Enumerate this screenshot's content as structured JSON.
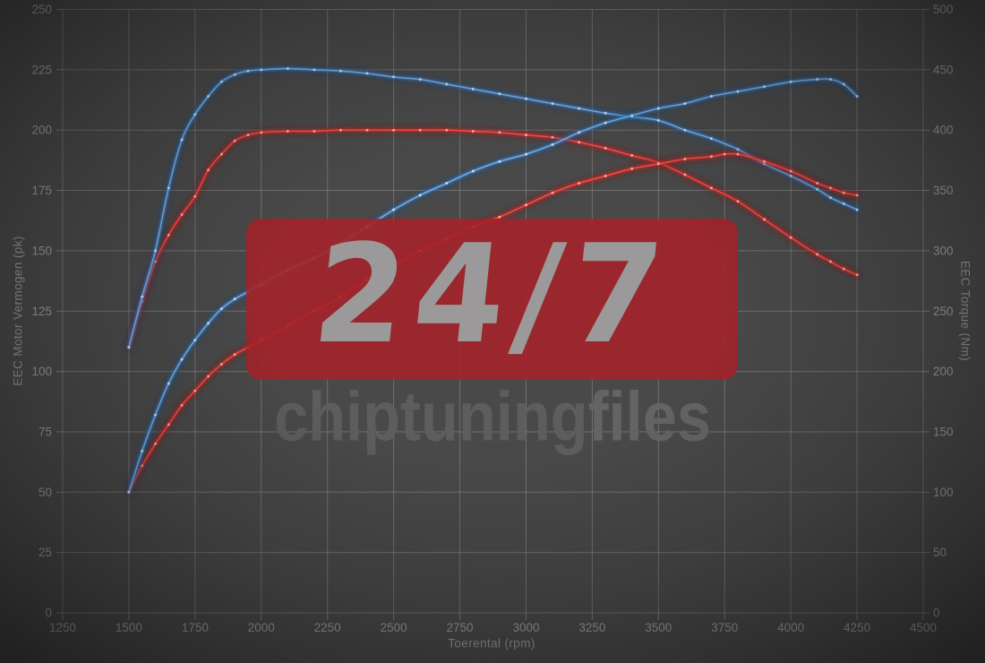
{
  "watermark": {
    "big": "24/7",
    "brand_left": "chiptuning",
    "brand_right": "files"
  },
  "colors": {
    "background": "#494949",
    "grid": "#a6a6a6",
    "tick_text": "#9a9a9a",
    "axis_title_text": "#949494",
    "watermark_box": "#a3232a",
    "watermark_digits": "#9b999a",
    "watermark_brand": "#5d5d5d",
    "tuned_line": "#3d7fc4",
    "stock_line": "#d22727"
  },
  "chart_data": {
    "type": "line",
    "title": "",
    "xlabel": "Toerental (rpm)",
    "ylabel_left": "EEC Motor Vermogen (pk)",
    "ylabel_right": "EEC Torque (Nm)",
    "x_range": [
      1250,
      4500
    ],
    "y_left_range": [
      0,
      250
    ],
    "y_right_range": [
      0,
      500
    ],
    "grid": true,
    "x_ticks": [
      1250,
      1500,
      1750,
      2000,
      2250,
      2500,
      2750,
      3000,
      3250,
      3500,
      3750,
      4000,
      4250,
      4500
    ],
    "y_left_ticks": [
      0,
      25,
      50,
      75,
      100,
      125,
      150,
      175,
      200,
      225,
      250
    ],
    "y_right_ticks": [
      0,
      50,
      100,
      150,
      200,
      250,
      300,
      350,
      400,
      450,
      500
    ],
    "series": [
      {
        "name": "torque-stock",
        "axis": "right",
        "unit": "Nm",
        "color": "#d22727",
        "glow": "#8a151c",
        "core": "#f1544a",
        "marker": "#ffb3aa",
        "points": [
          [
            1500,
            220
          ],
          [
            1550,
            258
          ],
          [
            1600,
            291
          ],
          [
            1650,
            313
          ],
          [
            1700,
            330
          ],
          [
            1750,
            345
          ],
          [
            1800,
            367
          ],
          [
            1850,
            380
          ],
          [
            1900,
            391
          ],
          [
            1950,
            396
          ],
          [
            2000,
            398
          ],
          [
            2100,
            399
          ],
          [
            2200,
            399
          ],
          [
            2300,
            400
          ],
          [
            2400,
            400
          ],
          [
            2500,
            400
          ],
          [
            2600,
            400
          ],
          [
            2700,
            400
          ],
          [
            2800,
            399
          ],
          [
            2900,
            398
          ],
          [
            3000,
            396
          ],
          [
            3100,
            394
          ],
          [
            3200,
            390
          ],
          [
            3300,
            385
          ],
          [
            3400,
            379
          ],
          [
            3500,
            373
          ],
          [
            3600,
            363
          ],
          [
            3700,
            352
          ],
          [
            3800,
            341
          ],
          [
            3900,
            326
          ],
          [
            4000,
            311
          ],
          [
            4100,
            297
          ],
          [
            4150,
            291
          ],
          [
            4200,
            285
          ],
          [
            4250,
            280
          ]
        ]
      },
      {
        "name": "torque-tuned",
        "axis": "right",
        "unit": "Nm",
        "color": "#3d7fc4",
        "glow": "#1d4a85",
        "core": "#7ab3e8",
        "marker": "#cfe4f7",
        "points": [
          [
            1500,
            220
          ],
          [
            1550,
            262
          ],
          [
            1600,
            300
          ],
          [
            1650,
            352
          ],
          [
            1700,
            392
          ],
          [
            1750,
            413
          ],
          [
            1800,
            428
          ],
          [
            1850,
            440
          ],
          [
            1900,
            446
          ],
          [
            1950,
            449
          ],
          [
            2000,
            450
          ],
          [
            2100,
            451
          ],
          [
            2200,
            450
          ],
          [
            2300,
            449
          ],
          [
            2400,
            447
          ],
          [
            2500,
            444
          ],
          [
            2600,
            442
          ],
          [
            2700,
            438
          ],
          [
            2800,
            434
          ],
          [
            2900,
            430
          ],
          [
            3000,
            426
          ],
          [
            3100,
            422
          ],
          [
            3200,
            418
          ],
          [
            3300,
            414
          ],
          [
            3400,
            411
          ],
          [
            3500,
            408
          ],
          [
            3600,
            400
          ],
          [
            3700,
            393
          ],
          [
            3800,
            384
          ],
          [
            3900,
            372
          ],
          [
            4000,
            362
          ],
          [
            4100,
            351
          ],
          [
            4150,
            344
          ],
          [
            4200,
            339
          ],
          [
            4250,
            334
          ]
        ]
      },
      {
        "name": "vermogen-stock",
        "axis": "left",
        "unit": "pk",
        "color": "#d22727",
        "glow": "#8a151c",
        "core": "#f1544a",
        "marker": "#ffb3aa",
        "points": [
          [
            1500,
            50
          ],
          [
            1550,
            61
          ],
          [
            1600,
            70
          ],
          [
            1650,
            78
          ],
          [
            1700,
            86
          ],
          [
            1750,
            92
          ],
          [
            1800,
            98
          ],
          [
            1850,
            103
          ],
          [
            1900,
            107
          ],
          [
            1950,
            110
          ],
          [
            2000,
            113
          ],
          [
            2100,
            119
          ],
          [
            2200,
            125
          ],
          [
            2300,
            131
          ],
          [
            2400,
            138
          ],
          [
            2500,
            144
          ],
          [
            2600,
            150
          ],
          [
            2700,
            155
          ],
          [
            2800,
            160
          ],
          [
            2900,
            164
          ],
          [
            3000,
            169
          ],
          [
            3100,
            174
          ],
          [
            3200,
            178
          ],
          [
            3300,
            181
          ],
          [
            3400,
            184
          ],
          [
            3500,
            186
          ],
          [
            3600,
            188
          ],
          [
            3700,
            189
          ],
          [
            3750,
            190
          ],
          [
            3800,
            190
          ],
          [
            3900,
            187
          ],
          [
            4000,
            183
          ],
          [
            4100,
            178
          ],
          [
            4150,
            176
          ],
          [
            4200,
            174
          ],
          [
            4250,
            173
          ]
        ]
      },
      {
        "name": "vermogen-tuned",
        "axis": "left",
        "unit": "pk",
        "color": "#3d7fc4",
        "glow": "#1d4a85",
        "core": "#7ab3e8",
        "marker": "#cfe4f7",
        "points": [
          [
            1500,
            50
          ],
          [
            1550,
            67
          ],
          [
            1600,
            82
          ],
          [
            1650,
            95
          ],
          [
            1700,
            105
          ],
          [
            1750,
            113
          ],
          [
            1800,
            120
          ],
          [
            1850,
            126
          ],
          [
            1900,
            130
          ],
          [
            1950,
            133
          ],
          [
            2000,
            136
          ],
          [
            2100,
            142
          ],
          [
            2200,
            147
          ],
          [
            2300,
            153
          ],
          [
            2400,
            160
          ],
          [
            2500,
            167
          ],
          [
            2600,
            173
          ],
          [
            2700,
            178
          ],
          [
            2800,
            183
          ],
          [
            2900,
            187
          ],
          [
            3000,
            190
          ],
          [
            3100,
            194
          ],
          [
            3200,
            199
          ],
          [
            3300,
            203
          ],
          [
            3400,
            206
          ],
          [
            3500,
            209
          ],
          [
            3600,
            211
          ],
          [
            3700,
            214
          ],
          [
            3800,
            216
          ],
          [
            3900,
            218
          ],
          [
            4000,
            220
          ],
          [
            4100,
            221
          ],
          [
            4150,
            221
          ],
          [
            4200,
            219
          ],
          [
            4250,
            214
          ]
        ]
      }
    ]
  }
}
